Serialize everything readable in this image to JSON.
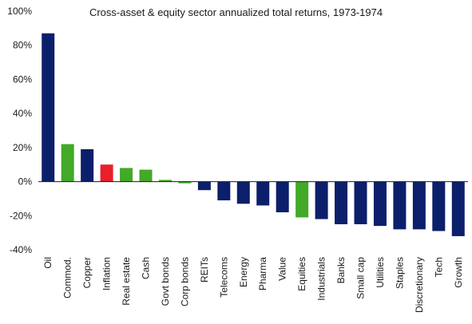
{
  "chart_data": {
    "type": "bar",
    "title": "Cross-asset & equity sector annualized total returns, 1973-1974",
    "xlabel": "",
    "ylabel": "",
    "ylim": [
      -40,
      100
    ],
    "yticks": [
      -40,
      -20,
      0,
      20,
      40,
      60,
      80,
      100
    ],
    "ytick_labels": [
      "-40%",
      "-20%",
      "0%",
      "20%",
      "40%",
      "60%",
      "80%",
      "100%"
    ],
    "grid": false,
    "legend": "none",
    "categories": [
      "Oil",
      "Commod.",
      "Copper",
      "Inflation",
      "Real estate",
      "Cash",
      "Govt bonds",
      "Corp bonds",
      "REITs",
      "Telecoms",
      "Energy",
      "Pharma",
      "Value",
      "Equities",
      "Industrials",
      "Banks",
      "Small cap",
      "Utilities",
      "Staples",
      "Discretionary",
      "Tech",
      "Growth"
    ],
    "values": [
      87,
      22,
      19,
      10,
      8,
      7,
      1,
      -1,
      -5,
      -11,
      -13,
      -14,
      -18,
      -21,
      -22,
      -25,
      -25,
      -26,
      -28,
      -28,
      -29,
      -32
    ],
    "bar_colors": [
      "#0c1f6b",
      "#43a928",
      "#0c1f6b",
      "#e8202a",
      "#43a928",
      "#43a928",
      "#43a928",
      "#43a928",
      "#0c1f6b",
      "#0c1f6b",
      "#0c1f6b",
      "#0c1f6b",
      "#0c1f6b",
      "#43a928",
      "#0c1f6b",
      "#0c1f6b",
      "#0c1f6b",
      "#0c1f6b",
      "#0c1f6b",
      "#0c1f6b",
      "#0c1f6b",
      "#0c1f6b"
    ]
  }
}
